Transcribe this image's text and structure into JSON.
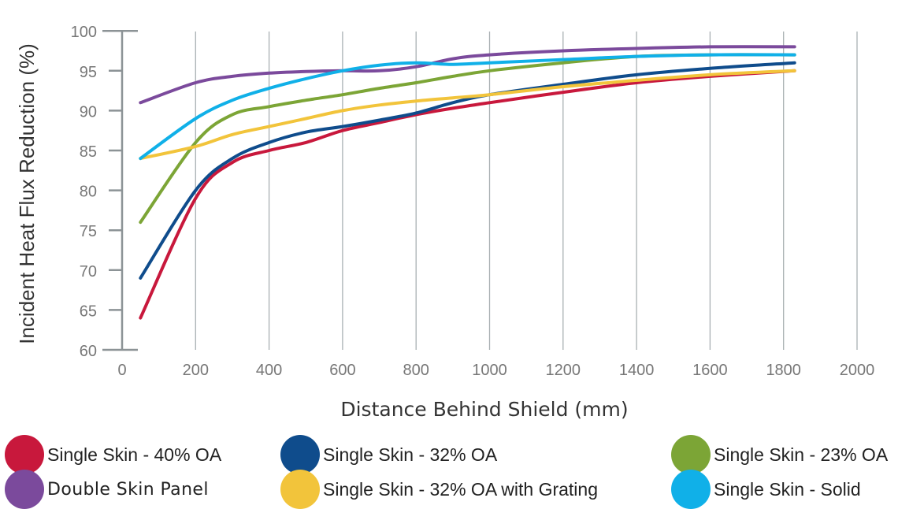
{
  "chart_data": {
    "type": "line",
    "title": "",
    "xlabel": "Distance Behind Shield (mm)",
    "ylabel": "Incident Heat Flux Reduction (%)",
    "xlim": [
      0,
      2000
    ],
    "ylim": [
      60,
      100
    ],
    "xticks": [
      "0",
      "200",
      "400",
      "600",
      "800",
      "1000",
      "1200",
      "1400",
      "1600",
      "1800",
      "2000"
    ],
    "yticks": [
      "60",
      "65",
      "70",
      "75",
      "80",
      "85",
      "90",
      "95",
      "100"
    ],
    "grid": "vertical",
    "legend_position": "bottom",
    "x": [
      50,
      200,
      300,
      400,
      500,
      600,
      700,
      800,
      900,
      1000,
      1200,
      1400,
      1600,
      1830
    ],
    "series": [
      {
        "name": "Single Skin - 40% OA",
        "color": "#c8183c",
        "values": [
          64,
          79,
          83.5,
          85,
          86,
          87.5,
          88.5,
          89.5,
          90.3,
          91,
          92.3,
          93.5,
          94.3,
          95
        ]
      },
      {
        "name": "Single Skin - 32% OA",
        "color": "#0f4c8c",
        "values": [
          69,
          80,
          84,
          86,
          87.3,
          88,
          88.8,
          89.7,
          91,
          92,
          93.3,
          94.5,
          95.3,
          96
        ]
      },
      {
        "name": "Single Skin - 23% OA",
        "color": "#7ca536",
        "values": [
          76,
          86,
          89.5,
          90.5,
          91.3,
          92,
          92.8,
          93.5,
          94.3,
          95,
          96,
          96.8,
          97,
          97
        ]
      },
      {
        "name": "Double Skin Panel",
        "color": "#7b4a9c",
        "values": [
          91,
          93.5,
          94.3,
          94.7,
          94.9,
          95,
          95,
          95.5,
          96.5,
          97,
          97.5,
          97.8,
          98,
          98
        ]
      },
      {
        "name": "Single Skin - 32% OA with Grating",
        "color": "#f2c43b",
        "values": [
          84,
          85.5,
          87,
          88,
          89,
          90,
          90.7,
          91.2,
          91.6,
          92,
          93,
          93.8,
          94.5,
          95
        ]
      },
      {
        "name": "Single Skin - Solid",
        "color": "#10b0e8",
        "values": [
          84,
          89,
          91.3,
          92.8,
          94,
          95,
          95.7,
          96,
          95.8,
          96,
          96.4,
          96.8,
          97,
          97
        ]
      }
    ]
  },
  "legend": [
    {
      "label": "Single Skin - 40% OA",
      "color": "#c8183c"
    },
    {
      "label": "Single Skin - 32% OA",
      "color": "#0f4c8c"
    },
    {
      "label": "Single Skin - 23% OA",
      "color": "#7ca536"
    },
    {
      "label": "Double Skin Panel",
      "color": "#7b4a9c"
    },
    {
      "label": "Single Skin - 32% OA with Grating",
      "color": "#f2c43b"
    },
    {
      "label": "Single Skin - Solid",
      "color": "#10b0e8"
    }
  ]
}
